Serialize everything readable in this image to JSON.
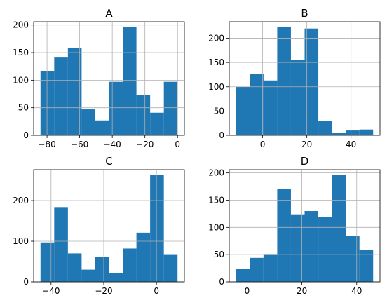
{
  "chart_data": [
    {
      "type": "bar",
      "title": "A",
      "bin_edges": [
        -84,
        -75.6,
        -67.2,
        -58.8,
        -50.4,
        -42,
        -33.6,
        -25.2,
        -16.8,
        -8.4,
        0
      ],
      "values": [
        117,
        141,
        158,
        47,
        27,
        97,
        196,
        73,
        41,
        97
      ],
      "xlim": [
        -88.2,
        4.2
      ],
      "ylim": [
        0,
        206
      ],
      "xticks": [
        -80,
        -60,
        -40,
        -20,
        0
      ],
      "yticks": [
        0,
        50,
        100,
        150,
        200
      ],
      "xtick_labels": [
        "−80",
        "−60",
        "−40",
        "−20",
        "0"
      ],
      "ytick_labels": [
        "0",
        "50",
        "100",
        "150",
        "200"
      ],
      "grid": true,
      "color": "#1f77b4"
    },
    {
      "type": "bar",
      "title": "B",
      "bin_edges": [
        -12,
        -5.8,
        0.4,
        6.6,
        12.8,
        19,
        25.2,
        31.4,
        37.6,
        43.8,
        50
      ],
      "values": [
        100,
        127,
        113,
        223,
        156,
        220,
        30,
        5,
        10,
        12
      ],
      "xlim": [
        -15.1,
        53.1
      ],
      "ylim": [
        0,
        234
      ],
      "xticks": [
        0,
        20,
        40
      ],
      "yticks": [
        0,
        50,
        100,
        150,
        200
      ],
      "xtick_labels": [
        "0",
        "20",
        "40"
      ],
      "ytick_labels": [
        "0",
        "50",
        "100",
        "150",
        "200"
      ],
      "grid": true,
      "color": "#1f77b4"
    },
    {
      "type": "bar",
      "title": "C",
      "bin_edges": [
        -44,
        -38.8,
        -33.6,
        -28.4,
        -23.2,
        -18,
        -12.8,
        -7.6,
        -2.4,
        2.8,
        8
      ],
      "values": [
        97,
        184,
        70,
        30,
        62,
        21,
        82,
        121,
        263,
        68
      ],
      "xlim": [
        -46.6,
        10.6
      ],
      "ylim": [
        0,
        276
      ],
      "xticks": [
        -40,
        -20,
        0
      ],
      "yticks": [
        0,
        100,
        200
      ],
      "xtick_labels": [
        "−40",
        "−20",
        "0"
      ],
      "ytick_labels": [
        "0",
        "100",
        "200"
      ],
      "grid": true,
      "color": "#1f77b4"
    },
    {
      "type": "bar",
      "title": "D",
      "bin_edges": [
        -4,
        1,
        6,
        11,
        16,
        21,
        26,
        31,
        36,
        41,
        46
      ],
      "values": [
        24,
        44,
        51,
        171,
        124,
        130,
        119,
        196,
        84,
        58
      ],
      "xlim": [
        -6.5,
        48.5
      ],
      "ylim": [
        0,
        206
      ],
      "xticks": [
        0,
        20,
        40
      ],
      "yticks": [
        0,
        50,
        100,
        150,
        200
      ],
      "xtick_labels": [
        "0",
        "20",
        "40"
      ],
      "ytick_labels": [
        "0",
        "50",
        "100",
        "150",
        "200"
      ],
      "grid": true,
      "color": "#1f77b4"
    }
  ]
}
